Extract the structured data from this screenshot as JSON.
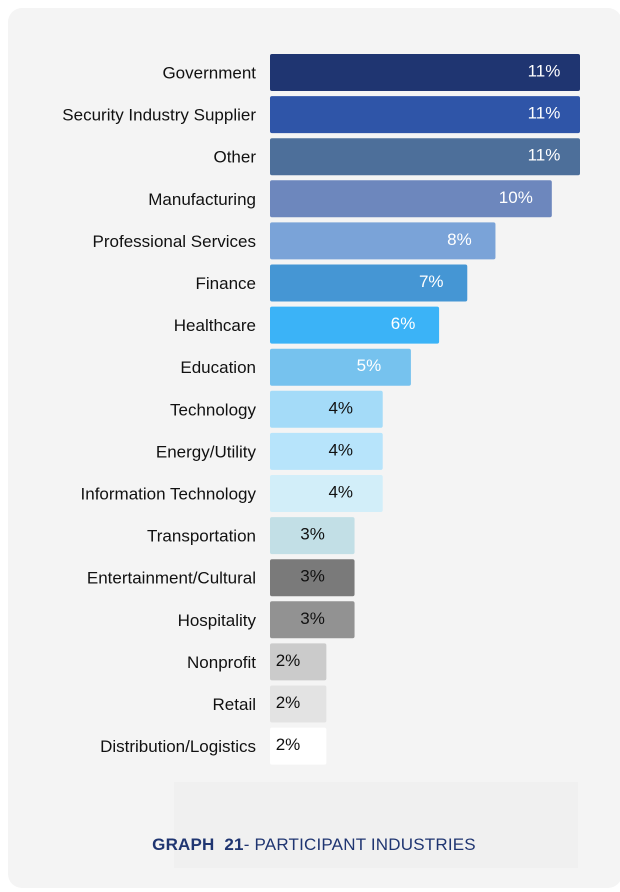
{
  "chart_data": {
    "type": "bar",
    "orientation": "horizontal",
    "categories": [
      "Government",
      "Security Industry Supplier",
      "Other",
      "Manufacturing",
      "Professional Services",
      "Finance",
      "Healthcare",
      "Education",
      "Technology",
      "Energy/Utility",
      "Information Technology",
      "Transportation",
      "Entertainment/Cultural",
      "Hospitality",
      "Nonprofit",
      "Retail",
      "Distribution/Logistics"
    ],
    "values": [
      11,
      11,
      11,
      10,
      8,
      7,
      6,
      5,
      4,
      4,
      4,
      3,
      3,
      3,
      2,
      2,
      2
    ],
    "value_labels": [
      "11%",
      "11%",
      "11%",
      "10%",
      "8%",
      "7%",
      "6%",
      "5%",
      "4%",
      "4%",
      "4%",
      "3%",
      "3%",
      "3%",
      "2%",
      "2%",
      "2%"
    ],
    "colors": [
      "#1f3571",
      "#2f55a8",
      "#4d6f9a",
      "#6d87bd",
      "#7aa3d8",
      "#4596d4",
      "#3bb3f7",
      "#76c2ee",
      "#a4dbf8",
      "#b7e4fb",
      "#d2eef9",
      "#c2dfe6",
      "#7a7a7a",
      "#929292",
      "#cbcbcb",
      "#e3e3e3",
      "#ffffff"
    ],
    "label_colors": [
      "#ffffff",
      "#ffffff",
      "#ffffff",
      "#ffffff",
      "#ffffff",
      "#ffffff",
      "#ffffff",
      "#ffffff",
      "#111111",
      "#111111",
      "#111111",
      "#111111",
      "#111111",
      "#111111",
      "#111111",
      "#111111",
      "#111111"
    ],
    "xlim": [
      0,
      11
    ],
    "grid": false,
    "legend": "none"
  },
  "caption": {
    "prefix": "GRAPH",
    "number": "21",
    "text": "- PARTICIPANT INDUSTRIES"
  }
}
